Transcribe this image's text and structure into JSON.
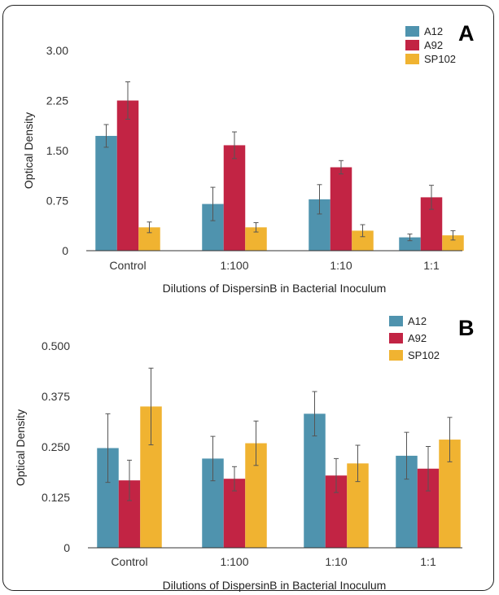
{
  "chart_data": [
    {
      "type": "bar",
      "panel": "A",
      "categories": [
        "Control",
        "1:100",
        "1:10",
        "1:1"
      ],
      "series": [
        {
          "name": "A12",
          "color": "#4f93ae",
          "values": [
            1.72,
            0.7,
            0.77,
            0.2
          ],
          "errors": [
            0.17,
            0.25,
            0.22,
            0.05
          ]
        },
        {
          "name": "A92",
          "color": "#c22444",
          "values": [
            2.25,
            1.58,
            1.25,
            0.8
          ],
          "errors": [
            0.28,
            0.2,
            0.1,
            0.18
          ]
        },
        {
          "name": "SP102",
          "color": "#f0b331",
          "values": [
            0.35,
            0.35,
            0.3,
            0.23
          ],
          "errors": [
            0.08,
            0.07,
            0.09,
            0.07
          ]
        }
      ],
      "xlabel": "Dilutions of DispersinB in Bacterial Inoculum",
      "ylabel": "Optical Density",
      "ylim": [
        0,
        3.0
      ],
      "yticks": [
        "0",
        "0.75",
        "1.50",
        "2.25",
        "3.00"
      ],
      "grid": false,
      "legend_position": "top-right"
    },
    {
      "type": "bar",
      "panel": "B",
      "categories": [
        "Control",
        "1:100",
        "1:10",
        "1:1"
      ],
      "series": [
        {
          "name": "A12",
          "color": "#4f93ae",
          "values": [
            0.247,
            0.221,
            0.332,
            0.228
          ],
          "errors": [
            0.085,
            0.055,
            0.055,
            0.058
          ]
        },
        {
          "name": "A92",
          "color": "#c22444",
          "values": [
            0.167,
            0.171,
            0.179,
            0.196
          ],
          "errors": [
            0.05,
            0.03,
            0.042,
            0.055
          ]
        },
        {
          "name": "SP102",
          "color": "#f0b331",
          "values": [
            0.35,
            0.259,
            0.209,
            0.268
          ],
          "errors": [
            0.095,
            0.055,
            0.045,
            0.055
          ]
        }
      ],
      "xlabel": "Dilutions of DispersinB in Bacterial Inoculum",
      "ylabel": "Optical Density",
      "ylim": [
        0,
        0.5
      ],
      "yticks": [
        "0",
        "0.125",
        "0.250",
        "0.375",
        "0.500"
      ],
      "grid": false,
      "legend_position": "top-right"
    }
  ]
}
